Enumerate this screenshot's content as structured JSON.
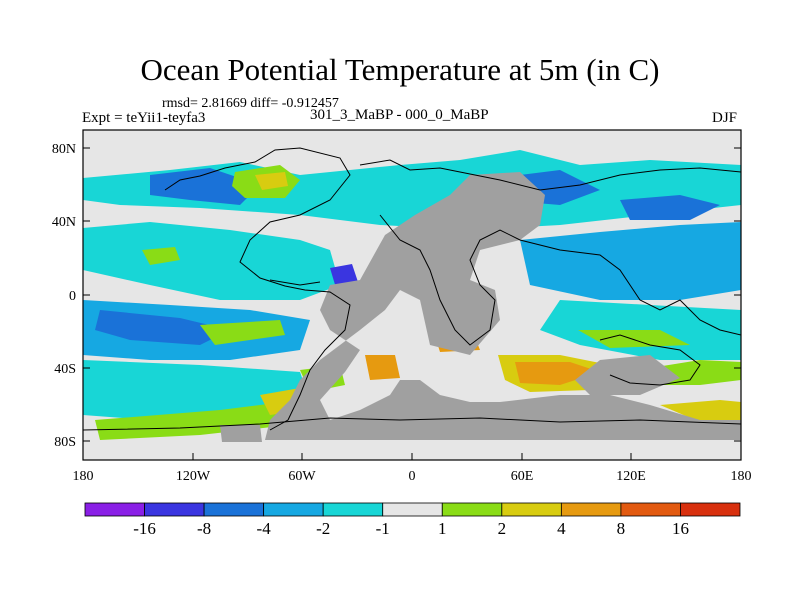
{
  "title": "Ocean Potential Temperature at 5m (in C)",
  "stats": "rmsd= 2.81669 diff= -0.912457",
  "experiment": "Expt = teYii1-teyfa3",
  "difference": "301_3_MaBP - 000_0_MaBP",
  "season": "DJF",
  "axes": {
    "lat_labels": [
      "80N",
      "40N",
      "0",
      "40S",
      "80S"
    ],
    "lon_labels": [
      "180",
      "120W",
      "60W",
      "0",
      "60E",
      "120E",
      "180"
    ]
  },
  "colorbar": {
    "labels": [
      "-16",
      "-8",
      "-4",
      "-2",
      "-1",
      "1",
      "2",
      "4",
      "8",
      "16"
    ],
    "colors": [
      "#8a1fe6",
      "#3a35e0",
      "#1a72d8",
      "#16a8e2",
      "#18d6d6",
      "#e6e6e6",
      "#8adc16",
      "#d8cc10",
      "#e69a10",
      "#e25a10",
      "#d8300e"
    ]
  },
  "colors": {
    "land": "#a0a0a0",
    "background": "#e6e6e6"
  }
}
